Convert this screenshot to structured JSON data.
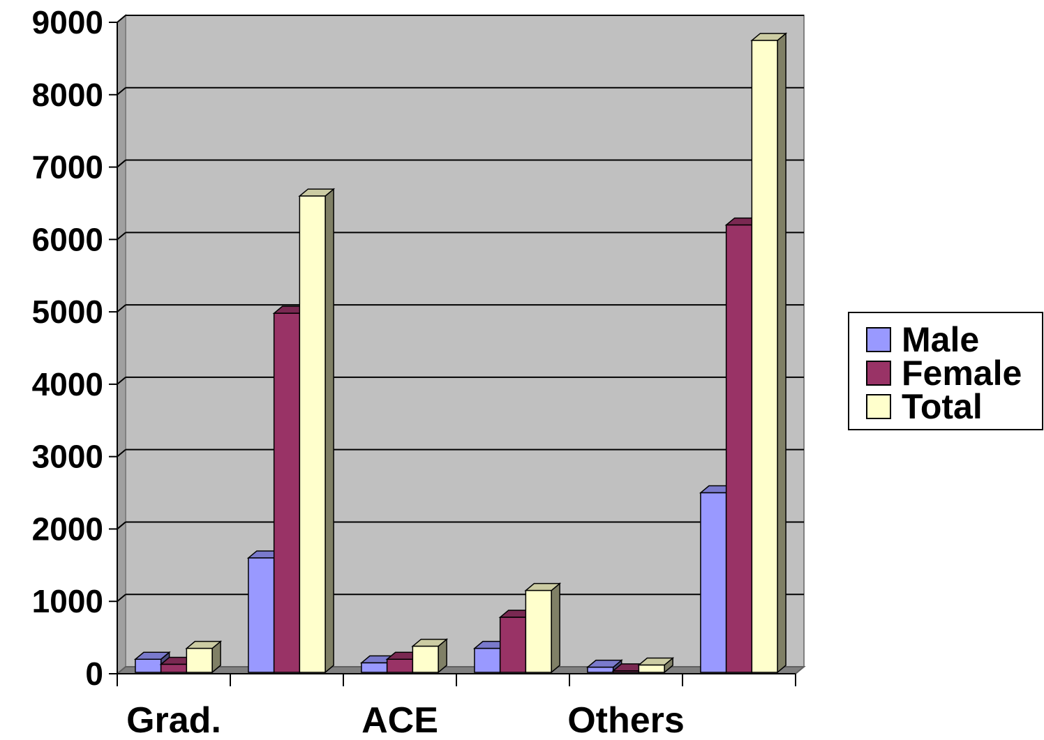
{
  "chart_data": {
    "type": "bar",
    "style": "3d-clustered-column",
    "categories": [
      "Grad.",
      "",
      "ACE",
      "",
      "Others",
      ""
    ],
    "series": [
      {
        "name": "Male",
        "color": "#9999ff",
        "values": [
          200,
          1600,
          150,
          350,
          90,
          2500
        ]
      },
      {
        "name": "Female",
        "color": "#993366",
        "values": [
          130,
          4980,
          200,
          780,
          40,
          6200
        ]
      },
      {
        "name": "Total",
        "color": "#ffffcc",
        "values": [
          350,
          6600,
          380,
          1150,
          120,
          8750
        ]
      }
    ],
    "title": "",
    "xlabel": "",
    "ylabel": "",
    "ylim": [
      0,
      9000
    ],
    "yticks": [
      "0",
      "1000",
      "2000",
      "3000",
      "4000",
      "5000",
      "6000",
      "7000",
      "8000",
      "9000"
    ],
    "grid": true,
    "plot_background": "#c0c0c0",
    "legend_position": "right"
  }
}
